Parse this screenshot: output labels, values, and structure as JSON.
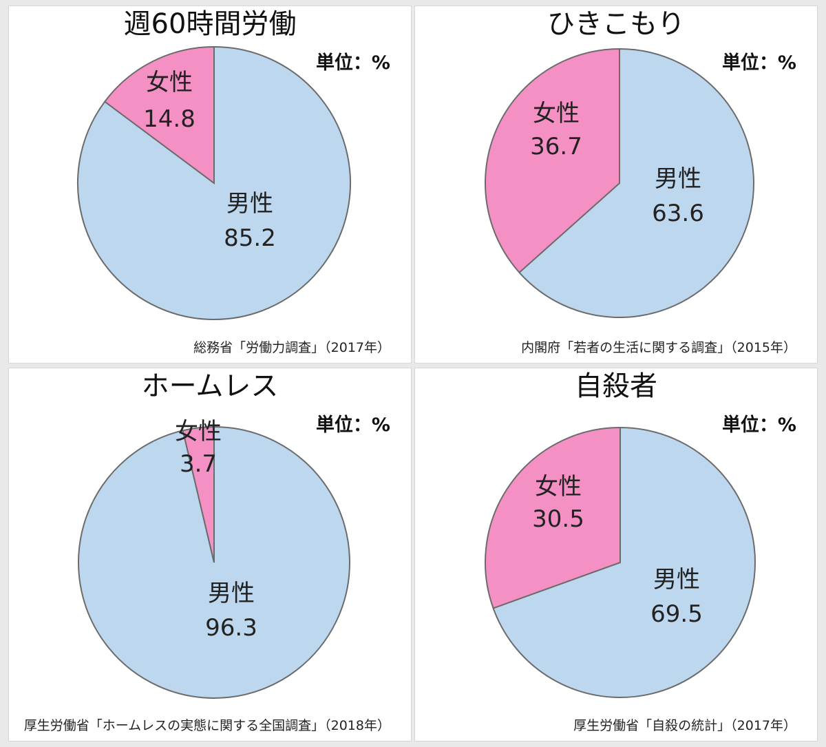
{
  "colors": {
    "male": "#bdd7ee",
    "female": "#f590c4",
    "stroke": "#6b6b6b"
  },
  "chart_data": [
    {
      "type": "pie",
      "title": "週60時間労働",
      "unit": "単位：%",
      "source": "総務省「労働力調査」（2017年）",
      "slices": [
        {
          "name": "女性",
          "value": 14.8,
          "label": "14.8"
        },
        {
          "name": "男性",
          "value": 85.2,
          "label": "85.2"
        }
      ]
    },
    {
      "type": "pie",
      "title": "ひきこもり",
      "unit": "単位：%",
      "source": "内閣府「若者の生活に関する調査」（2015年）",
      "slices": [
        {
          "name": "女性",
          "value": 36.7,
          "label": "36.7"
        },
        {
          "name": "男性",
          "value": 63.6,
          "label": "63.6"
        }
      ]
    },
    {
      "type": "pie",
      "title": "ホームレス",
      "unit": "単位：%",
      "source": "厚生労働省「ホームレスの実態に関する全国調査」（2018年）",
      "slices": [
        {
          "name": "女性",
          "value": 3.7,
          "label": "3.7"
        },
        {
          "name": "男性",
          "value": 96.3,
          "label": "96.3"
        }
      ]
    },
    {
      "type": "pie",
      "title": "自殺者",
      "unit": "単位：%",
      "source": "厚生労働省「自殺の統計」（2017年）",
      "slices": [
        {
          "name": "女性",
          "value": 30.5,
          "label": "30.5"
        },
        {
          "name": "男性",
          "value": 69.5,
          "label": "69.5"
        }
      ]
    }
  ]
}
